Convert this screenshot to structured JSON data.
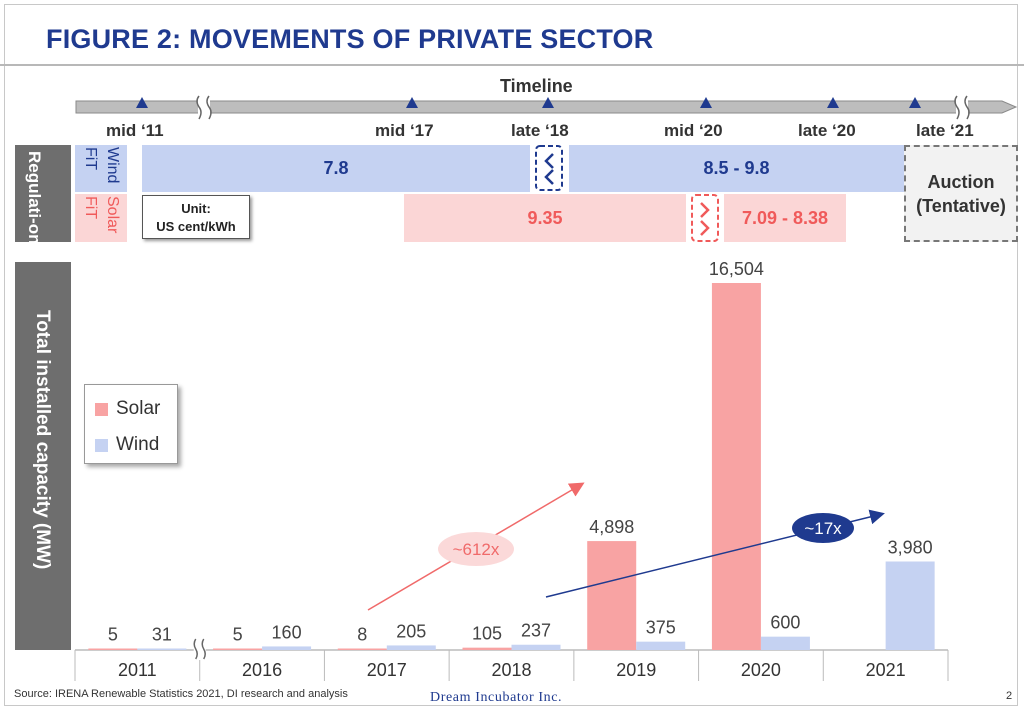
{
  "title": "FIGURE 2: MOVEMENTS OF PRIVATE SECTOR",
  "timeline": {
    "label": "Timeline",
    "points": [
      "mid ‘11",
      "mid ‘17",
      "late ‘18",
      "mid ‘20",
      "late ‘20",
      "late ‘21"
    ]
  },
  "regulation": {
    "header": "Regulati-on",
    "wind_label": "Wind",
    "solar_label": "Solar",
    "fit_label": "FiT",
    "unit_line1": "Unit:",
    "unit_line2": "US cent/kWh",
    "wind_values": [
      "7.8",
      "8.5 - 9.8"
    ],
    "solar_values": [
      "9.35",
      "7.09 - 8.38"
    ],
    "auction_line1": "Auction",
    "auction_line2": "(Tentative)"
  },
  "chart_data": {
    "type": "bar",
    "ylabel": "Total installed capacity (MW)",
    "categories": [
      "2011",
      "2016",
      "2017",
      "2018",
      "2019",
      "2020",
      "2021"
    ],
    "series": [
      {
        "name": "Solar",
        "values": [
          5,
          5,
          8,
          105,
          4898,
          16504,
          null
        ]
      },
      {
        "name": "Wind",
        "values": [
          31,
          160,
          205,
          237,
          375,
          600,
          3980
        ]
      }
    ],
    "value_labels": {
      "Solar": [
        "5",
        "5",
        "8",
        "105",
        "4,898",
        "16,504",
        ""
      ],
      "Wind": [
        "31",
        "160",
        "205",
        "237",
        "375",
        "600",
        "3,980"
      ]
    },
    "ylim": [
      0,
      16504
    ],
    "annotations": [
      "~612x",
      "~17x"
    ],
    "legend_position": "left",
    "colors": {
      "Solar": "#f8a3a3",
      "Wind": "#c5d2f2"
    }
  },
  "footer": {
    "source": "Source:  IRENA Renewable Statistics 2021, DI research and analysis",
    "company": "Dream Incubator Inc.",
    "page": "2"
  },
  "colors": {
    "accent": "#1f3a8f",
    "solar_text": "#f05a5a",
    "arrow_solar": "#f06a6a",
    "arrow_wind": "#1f3a8f",
    "row_header": "#6e6e6e"
  }
}
